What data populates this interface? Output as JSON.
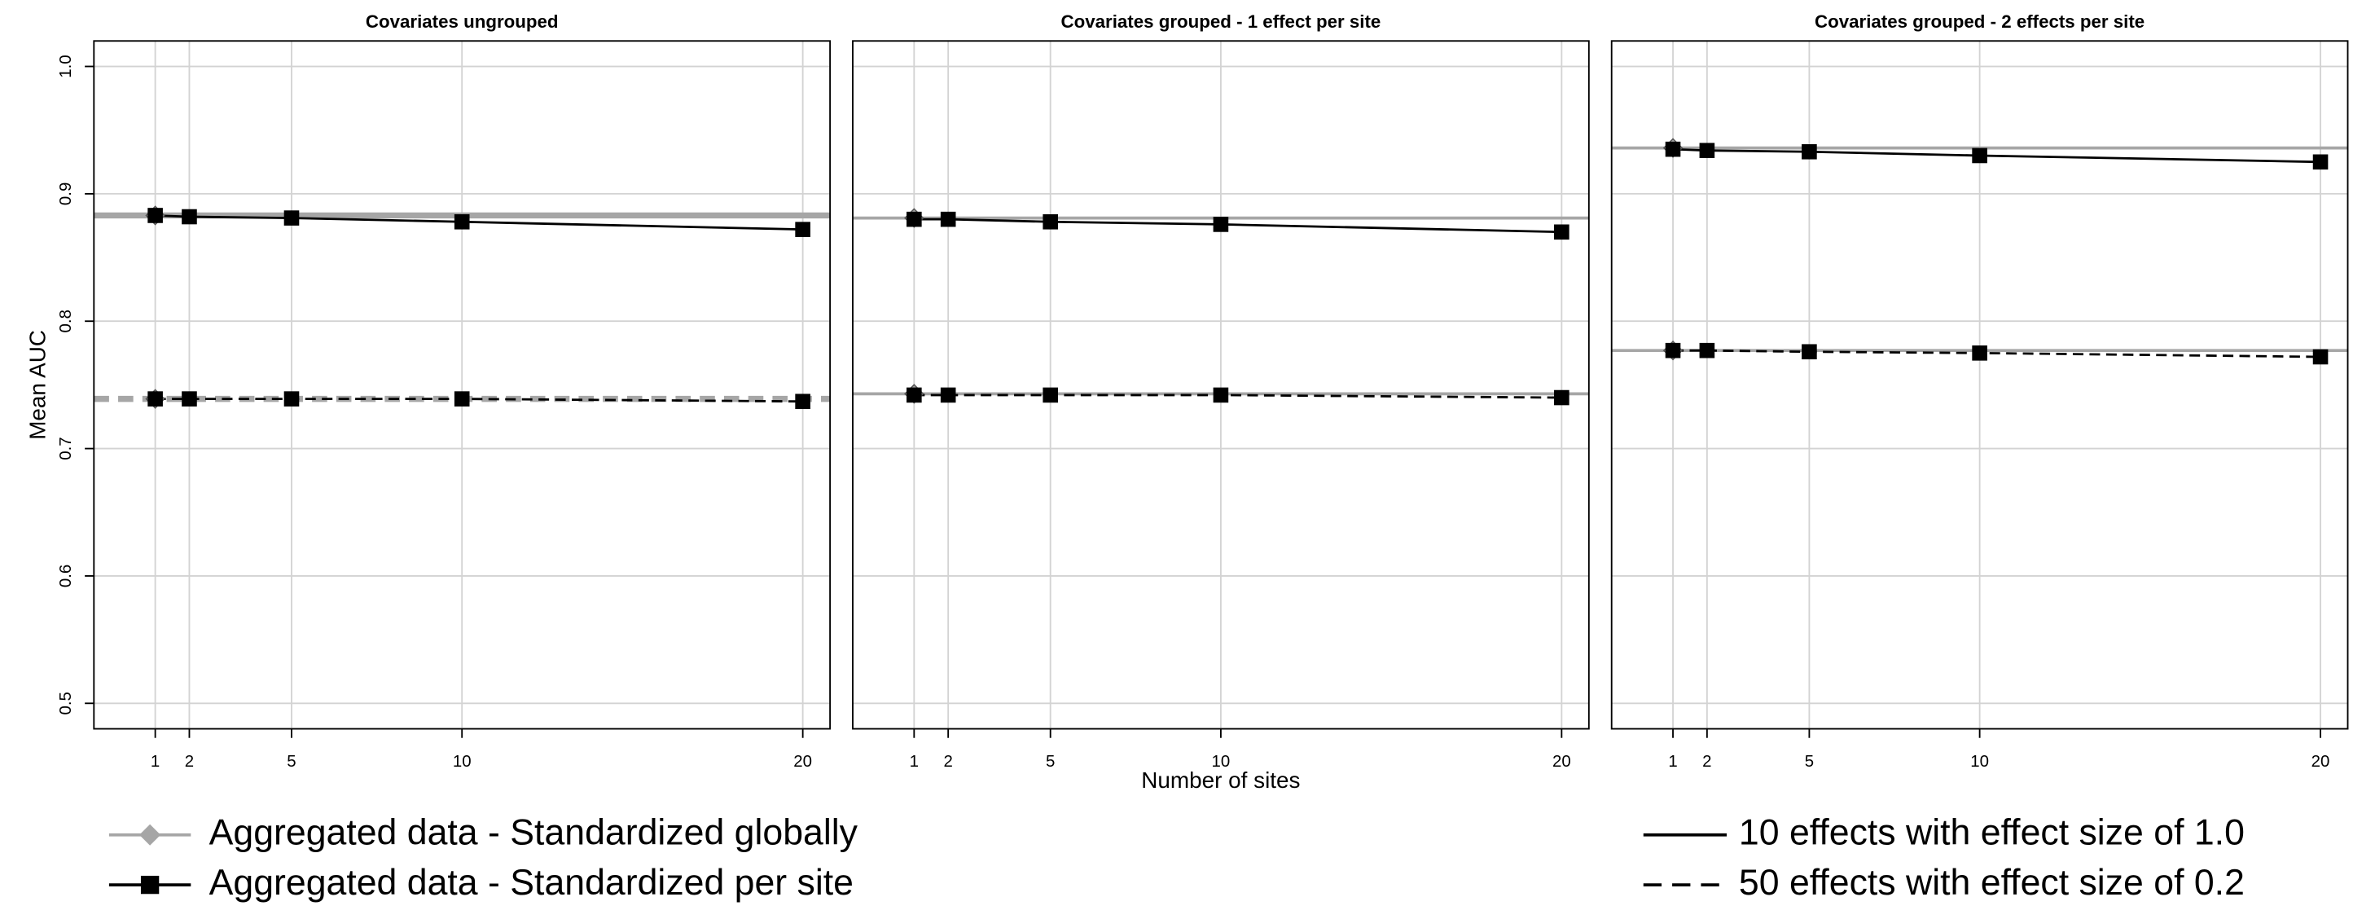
{
  "ylabel": "Mean AUC",
  "xlabel": "Number of sites",
  "legend": {
    "methods": [
      {
        "label": "Aggregated data - Standardized globally",
        "color": "#a6a6a6",
        "marker": "diamond"
      },
      {
        "label": "Aggregated data - Standardized per site",
        "color": "#000000",
        "marker": "square"
      }
    ],
    "effects": [
      {
        "label": "10 effects with effect size of 1.0",
        "dash": "solid"
      },
      {
        "label": "50 effects with effect size of 0.2",
        "dash": "dashed"
      }
    ]
  },
  "chart_data": [
    {
      "type": "line",
      "title": "Covariates ungrouped",
      "x": [
        1,
        2,
        5,
        10,
        20
      ],
      "xlim": [
        -0.8,
        20.8
      ],
      "xticks": [
        1,
        2,
        5,
        10,
        20
      ],
      "ylim": [
        0.48,
        1.02
      ],
      "yticks": [
        0.5,
        0.6,
        0.7,
        0.8,
        0.9,
        {
          "value": 1,
          "label": "1.0"
        }
      ],
      "grid": true,
      "series": [
        {
          "color": "#a6a6a6",
          "marker": "diamond",
          "dash": "solid",
          "hline": true,
          "width": 4,
          "x": [
            1
          ],
          "values": [
            0.883
          ]
        },
        {
          "color": "#a6a6a6",
          "marker": "diamond",
          "dash": "dashed",
          "hline": true,
          "width": 4,
          "x": [
            1
          ],
          "values": [
            0.739
          ]
        },
        {
          "color": "#000000",
          "marker": "square",
          "dash": "solid",
          "values": [
            0.883,
            0.882,
            0.881,
            0.878,
            0.872
          ]
        },
        {
          "color": "#000000",
          "marker": "square",
          "dash": "dashed",
          "values": [
            0.739,
            0.739,
            0.739,
            0.739,
            0.737
          ]
        }
      ]
    },
    {
      "type": "line",
      "title": "Covariates grouped - 1 effect per site",
      "x": [
        1,
        2,
        5,
        10,
        20
      ],
      "xlim": [
        -0.8,
        20.8
      ],
      "xticks": [
        1,
        2,
        5,
        10,
        20
      ],
      "ylim": [
        0.48,
        1.02
      ],
      "yticks": [
        0.5,
        0.6,
        0.7,
        0.8,
        0.9,
        {
          "value": 1,
          "label": "1.0"
        }
      ],
      "grid": true,
      "series": [
        {
          "color": "#a6a6a6",
          "marker": "diamond",
          "dash": "solid",
          "hline": true,
          "width": 2,
          "x": [
            1
          ],
          "values": [
            0.881
          ]
        },
        {
          "color": "#a6a6a6",
          "marker": "diamond",
          "dash": "solid",
          "hline": true,
          "width": 2,
          "x": [
            1
          ],
          "values": [
            0.743
          ]
        },
        {
          "color": "#000000",
          "marker": "square",
          "dash": "solid",
          "values": [
            0.88,
            0.88,
            0.878,
            0.876,
            0.87
          ]
        },
        {
          "color": "#000000",
          "marker": "square",
          "dash": "dashed",
          "values": [
            0.742,
            0.742,
            0.742,
            0.742,
            0.74
          ]
        }
      ]
    },
    {
      "type": "line",
      "title": "Covariates grouped - 2 effects per site",
      "x": [
        1,
        2,
        5,
        10,
        20
      ],
      "xlim": [
        -0.8,
        20.8
      ],
      "xticks": [
        1,
        2,
        5,
        10,
        20
      ],
      "ylim": [
        0.48,
        1.02
      ],
      "yticks": [
        0.5,
        0.6,
        0.7,
        0.8,
        0.9,
        {
          "value": 1,
          "label": "1.0"
        }
      ],
      "grid": true,
      "series": [
        {
          "color": "#a6a6a6",
          "marker": "diamond",
          "dash": "solid",
          "hline": true,
          "width": 2,
          "x": [
            1
          ],
          "values": [
            0.936
          ]
        },
        {
          "color": "#a6a6a6",
          "marker": "diamond",
          "dash": "solid",
          "hline": true,
          "width": 2,
          "x": [
            1
          ],
          "values": [
            0.777
          ]
        },
        {
          "color": "#000000",
          "marker": "square",
          "dash": "solid",
          "values": [
            0.935,
            0.934,
            0.933,
            0.93,
            0.925
          ]
        },
        {
          "color": "#000000",
          "marker": "square",
          "dash": "dashed",
          "values": [
            0.777,
            0.777,
            0.776,
            0.775,
            0.772
          ]
        }
      ]
    }
  ]
}
